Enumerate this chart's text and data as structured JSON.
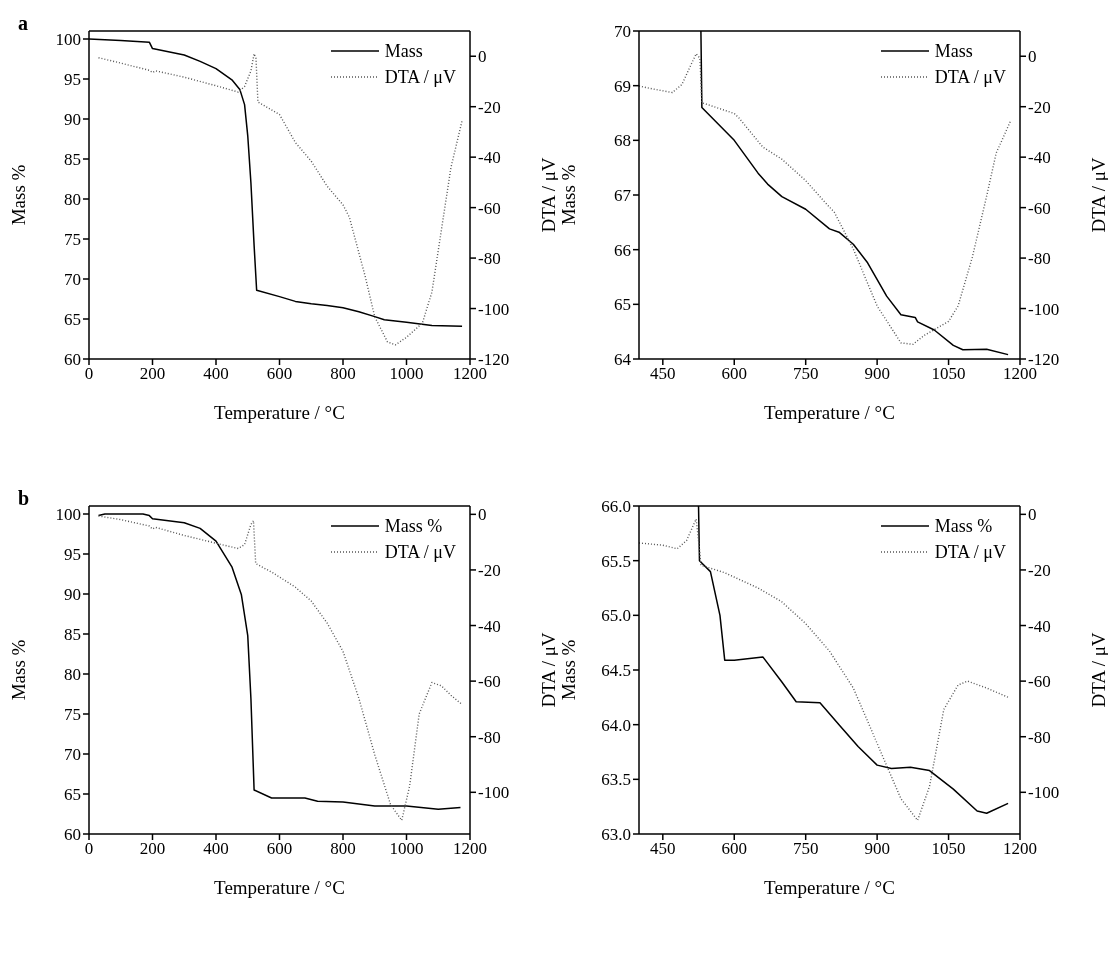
{
  "chart_data": [
    {
      "type": "line",
      "title": "a",
      "xlabel": "Temperature / °C",
      "ylabel": "Mass %",
      "y2label": "DTA / μV",
      "xlim": [
        0,
        1200
      ],
      "xticks": [
        0,
        200,
        400,
        600,
        800,
        1000,
        1200
      ],
      "ylim": [
        60,
        101
      ],
      "yticks": [
        60,
        65,
        70,
        75,
        80,
        85,
        90,
        95,
        100
      ],
      "y2lim": [
        -120,
        10
      ],
      "y2ticks": [
        -120,
        -100,
        -80,
        -60,
        -40,
        -20,
        0
      ],
      "legend": "top right",
      "grid": false,
      "marker": "none",
      "series": [
        {
          "name": "Mass",
          "color": "#000000",
          "line_style": "solid",
          "x": [
            0,
            100,
            190,
            200,
            300,
            350,
            400,
            450,
            475,
            490,
            500,
            510,
            520,
            528,
            600,
            650,
            700,
            750,
            800,
            850,
            900,
            930,
            1000,
            1080,
            1175
          ],
          "values": [
            100,
            99.8,
            99.6,
            98.8,
            98.0,
            97.2,
            96.3,
            94.9,
            93.7,
            91.8,
            87.9,
            82.0,
            74.2,
            68.6,
            67.8,
            67.2,
            66.9,
            66.7,
            66.4,
            65.9,
            65.3,
            64.9,
            64.6,
            64.2,
            64.1
          ]
        },
        {
          "name": "DTA / μV",
          "color": "#555555",
          "line_style": "dotted",
          "axis": "y2",
          "x": [
            30,
            100,
            190,
            200,
            210,
            300,
            400,
            470,
            490,
            510,
            520,
            526,
            532,
            600,
            650,
            700,
            750,
            800,
            820,
            870,
            900,
            940,
            965,
            1000,
            1050,
            1080,
            1110,
            1140,
            1175
          ],
          "values": [
            -0.6,
            -2.7,
            -5.6,
            -6.4,
            -5.8,
            -8.3,
            -11.7,
            -14.2,
            -12.0,
            -5.8,
            1.0,
            -0.9,
            -18.1,
            -23.1,
            -34.2,
            -41.6,
            -51.5,
            -58.9,
            -63.8,
            -87.3,
            -103.3,
            -113.2,
            -114.4,
            -111.4,
            -105.8,
            -93.5,
            -68.8,
            -44.1,
            -25.6
          ]
        }
      ]
    },
    {
      "type": "line",
      "xlabel": "Temperature / °C",
      "ylabel": "Mass %",
      "y2label": "DTA / μV",
      "xlim": [
        400,
        1200
      ],
      "xticks": [
        450,
        600,
        750,
        900,
        1050,
        1200
      ],
      "ylim": [
        64,
        70
      ],
      "yticks": [
        64,
        65,
        66,
        67,
        68,
        69,
        70
      ],
      "y2lim": [
        -120,
        10
      ],
      "y2ticks": [
        -120,
        -100,
        -80,
        -60,
        -40,
        -20,
        0
      ],
      "legend": "top right",
      "grid": false,
      "marker": "none",
      "series": [
        {
          "name": "Mass",
          "color": "#000000",
          "line_style": "solid",
          "x": [
            530,
            532,
            600,
            650,
            670,
            700,
            750,
            800,
            820,
            850,
            880,
            920,
            950,
            980,
            985,
            1020,
            1060,
            1080,
            1130,
            1175
          ],
          "values": [
            70,
            68.6,
            68.0,
            67.4,
            67.2,
            66.97,
            66.74,
            66.38,
            66.32,
            66.1,
            65.76,
            65.15,
            64.81,
            64.76,
            64.68,
            64.53,
            64.25,
            64.17,
            64.18,
            64.08
          ]
        },
        {
          "name": "DTA / μV",
          "color": "#555555",
          "line_style": "dotted",
          "axis": "y2",
          "x": [
            400,
            430,
            470,
            490,
            520,
            528,
            532,
            600,
            610,
            660,
            700,
            750,
            790,
            810,
            850,
            900,
            950,
            975,
            1000,
            1050,
            1070,
            1100,
            1130,
            1150,
            1180
          ],
          "values": [
            -11.8,
            -13.0,
            -14.4,
            -11.2,
            1.0,
            -0.8,
            -18.4,
            -22.7,
            -24.5,
            -36.0,
            -40.8,
            -49.3,
            -57.8,
            -61.8,
            -76.4,
            -99.0,
            -113.6,
            -114.2,
            -110.5,
            -105.1,
            -99.0,
            -79.6,
            -55.4,
            -38.4,
            -25.7
          ]
        }
      ]
    },
    {
      "type": "line",
      "title": "b",
      "xlabel": "Temperature / °C",
      "ylabel": "Mass %",
      "y2label": "DTA / μV",
      "xlim": [
        0,
        1200
      ],
      "xticks": [
        0,
        200,
        400,
        600,
        800,
        1000,
        1200
      ],
      "ylim": [
        60,
        101
      ],
      "yticks": [
        60,
        65,
        70,
        75,
        80,
        85,
        90,
        95,
        100
      ],
      "y2lim": [
        -115,
        3
      ],
      "y2ticks": [
        -100,
        -80,
        -60,
        -40,
        -20,
        0
      ],
      "legend": "top right",
      "grid": false,
      "marker": "none",
      "series": [
        {
          "name": "Mass %",
          "color": "#000000",
          "line_style": "solid",
          "x": [
            30,
            50,
            170,
            190,
            200,
            300,
            350,
            400,
            450,
            480,
            500,
            510,
            520,
            575,
            680,
            720,
            800,
            900,
            1000,
            1100,
            1170
          ],
          "values": [
            99.8,
            100,
            100,
            99.8,
            99.4,
            98.9,
            98.2,
            96.6,
            93.4,
            89.9,
            84.8,
            76.9,
            65.5,
            64.5,
            64.5,
            64.1,
            64.0,
            63.5,
            63.5,
            63.1,
            63.3
          ]
        },
        {
          "name": "DTA / μV",
          "color": "#555555",
          "line_style": "dotted",
          "axis": "y2",
          "x": [
            30,
            100,
            190,
            200,
            210,
            300,
            400,
            470,
            490,
            510,
            518,
            525,
            580,
            650,
            700,
            750,
            800,
            850,
            900,
            950,
            985,
            1010,
            1040,
            1080,
            1110,
            1140,
            1175
          ],
          "values": [
            -0.6,
            -1.9,
            -4.2,
            -5.3,
            -4.7,
            -7.6,
            -10.4,
            -12.3,
            -10.9,
            -3.6,
            -2.3,
            -17.7,
            -21.1,
            -26.2,
            -31.2,
            -39.1,
            -49.3,
            -66.2,
            -86.5,
            -104.5,
            -110.1,
            -97.7,
            -71.8,
            -60.5,
            -61.7,
            -65.1,
            -68.4
          ]
        }
      ]
    },
    {
      "type": "line",
      "xlabel": "Temperature / °C",
      "ylabel": "Mass %",
      "y2label": "DTA / μV",
      "xlim": [
        400,
        1200
      ],
      "xticks": [
        450,
        600,
        750,
        900,
        1050,
        1200
      ],
      "ylim": [
        63,
        66
      ],
      "yticks": [
        {
          "value": 63,
          "label": "63.0"
        },
        63.5,
        {
          "value": 64,
          "label": "64.0"
        },
        64.5,
        {
          "value": 65,
          "label": "65.0"
        },
        65.5,
        {
          "value": 66,
          "label": "66.0"
        }
      ],
      "y2lim": [
        -115,
        3
      ],
      "y2ticks": [
        -100,
        -80,
        -60,
        -40,
        -20,
        0
      ],
      "legend": "top right",
      "grid": false,
      "marker": "none",
      "series": [
        {
          "name": "Mass %",
          "color": "#000000",
          "line_style": "solid",
          "x": [
            525,
            527,
            550,
            570,
            580,
            600,
            660,
            700,
            730,
            780,
            820,
            860,
            900,
            930,
            970,
            1010,
            1060,
            1110,
            1130,
            1175
          ],
          "values": [
            66.0,
            65.5,
            65.4,
            65.0,
            64.59,
            64.59,
            64.62,
            64.39,
            64.21,
            64.2,
            64.0,
            63.8,
            63.63,
            63.6,
            63.61,
            63.58,
            63.41,
            63.21,
            63.19,
            63.28
          ]
        },
        {
          "name": "DTA / μV",
          "color": "#555555",
          "line_style": "dotted",
          "axis": "y2",
          "x": [
            400,
            450,
            480,
            500,
            520,
            525,
            530,
            580,
            650,
            700,
            750,
            800,
            850,
            900,
            950,
            985,
            1010,
            1040,
            1070,
            1090,
            1130,
            1175
          ],
          "values": [
            -10.3,
            -11.1,
            -12.4,
            -9.4,
            -1.7,
            -9.4,
            -18.3,
            -21.0,
            -26.5,
            -31.5,
            -39.3,
            -49.2,
            -62.5,
            -82.4,
            -102.3,
            -110.1,
            -97.9,
            -70.2,
            -61.4,
            -60.0,
            -62.5,
            -65.8
          ]
        }
      ]
    }
  ]
}
